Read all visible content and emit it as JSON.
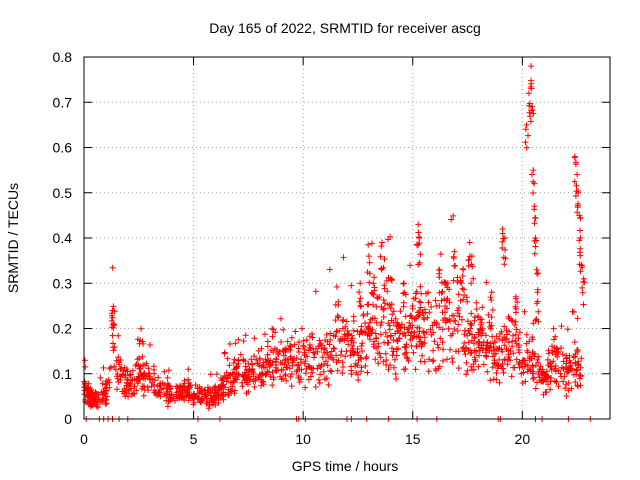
{
  "chart_data": {
    "type": "scatter",
    "title": "Day 165 of 2022, SRMTID for receiver ascg",
    "xlabel": "GPS time / hours",
    "ylabel": "SRMTID / TECUs",
    "xlim": [
      0,
      24
    ],
    "ylim": [
      0,
      0.8
    ],
    "grid": true,
    "marker": "+",
    "series_color": "#ff0000",
    "x_ticks": [
      "0",
      "5",
      "10",
      "15",
      "20"
    ],
    "x_tick_values": [
      0,
      5,
      10,
      15,
      20
    ],
    "y_ticks": [
      "0",
      "0.1",
      "0.2",
      "0.3",
      "0.4",
      "0.5",
      "0.6",
      "0.7",
      "0.8"
    ],
    "y_tick_values": [
      0,
      0.1,
      0.2,
      0.3,
      0.4,
      0.5,
      0.6,
      0.7,
      0.8
    ],
    "profile": [
      [
        0.0,
        0.07
      ],
      [
        0.3,
        0.05
      ],
      [
        0.6,
        0.04
      ],
      [
        0.9,
        0.06
      ],
      [
        1.1,
        0.07
      ],
      [
        1.25,
        0.16
      ],
      [
        1.35,
        0.22
      ],
      [
        1.5,
        0.1
      ],
      [
        1.8,
        0.08
      ],
      [
        2.2,
        0.08
      ],
      [
        2.6,
        0.1
      ],
      [
        3.0,
        0.09
      ],
      [
        3.5,
        0.06
      ],
      [
        4.0,
        0.06
      ],
      [
        4.5,
        0.06
      ],
      [
        5.0,
        0.05
      ],
      [
        5.5,
        0.05
      ],
      [
        6.0,
        0.05
      ],
      [
        6.5,
        0.08
      ],
      [
        7.0,
        0.1
      ],
      [
        7.5,
        0.09
      ],
      [
        8.0,
        0.11
      ],
      [
        8.5,
        0.12
      ],
      [
        9.0,
        0.12
      ],
      [
        9.5,
        0.13
      ],
      [
        10.0,
        0.13
      ],
      [
        10.5,
        0.14
      ],
      [
        11.0,
        0.15
      ],
      [
        11.5,
        0.17
      ],
      [
        12.0,
        0.18
      ],
      [
        12.5,
        0.13
      ],
      [
        13.0,
        0.2
      ],
      [
        13.5,
        0.24
      ],
      [
        14.0,
        0.2
      ],
      [
        14.5,
        0.17
      ],
      [
        15.0,
        0.18
      ],
      [
        15.5,
        0.22
      ],
      [
        16.0,
        0.19
      ],
      [
        16.5,
        0.22
      ],
      [
        17.0,
        0.23
      ],
      [
        17.5,
        0.19
      ],
      [
        18.0,
        0.17
      ],
      [
        18.5,
        0.15
      ],
      [
        19.0,
        0.14
      ],
      [
        19.5,
        0.17
      ],
      [
        20.0,
        0.12
      ],
      [
        20.5,
        0.14
      ],
      [
        21.0,
        0.09
      ],
      [
        21.5,
        0.13
      ],
      [
        22.0,
        0.1
      ],
      [
        22.4,
        0.12
      ],
      [
        22.7,
        0.1
      ]
    ],
    "spikes": [
      [
        1.3,
        0.24
      ],
      [
        1.35,
        0.21
      ],
      [
        12.6,
        0.3
      ],
      [
        13.0,
        0.36
      ],
      [
        13.2,
        0.3
      ],
      [
        13.6,
        0.39
      ],
      [
        14.0,
        0.31
      ],
      [
        14.6,
        0.3
      ],
      [
        15.25,
        0.43
      ],
      [
        15.3,
        0.4
      ],
      [
        16.2,
        0.33
      ],
      [
        16.6,
        0.3
      ],
      [
        16.9,
        0.37
      ],
      [
        17.3,
        0.33
      ],
      [
        17.6,
        0.39
      ],
      [
        17.7,
        0.36
      ],
      [
        18.6,
        0.28
      ],
      [
        19.1,
        0.42
      ],
      [
        19.2,
        0.4
      ],
      [
        19.7,
        0.27
      ],
      [
        20.2,
        0.65
      ],
      [
        20.3,
        0.72
      ],
      [
        20.4,
        0.78
      ],
      [
        20.45,
        0.69
      ],
      [
        20.5,
        0.55
      ],
      [
        20.55,
        0.47
      ],
      [
        20.6,
        0.4
      ],
      [
        20.65,
        0.33
      ],
      [
        20.7,
        0.26
      ],
      [
        22.4,
        0.58
      ],
      [
        22.5,
        0.54
      ],
      [
        22.55,
        0.5
      ],
      [
        22.6,
        0.45
      ],
      [
        22.65,
        0.4
      ],
      [
        22.7,
        0.34
      ],
      [
        22.8,
        0.31
      ]
    ],
    "zero_points": [
      0.1,
      0.7,
      0.9,
      1.1,
      1.3,
      1.6,
      2.0,
      5.2,
      6.2,
      9.7,
      9.8,
      10.1,
      12.0,
      12.2,
      12.9,
      13.9,
      15.2,
      16.1,
      18.9,
      19.0,
      20.6,
      20.9,
      22.1,
      23.1
    ]
  }
}
